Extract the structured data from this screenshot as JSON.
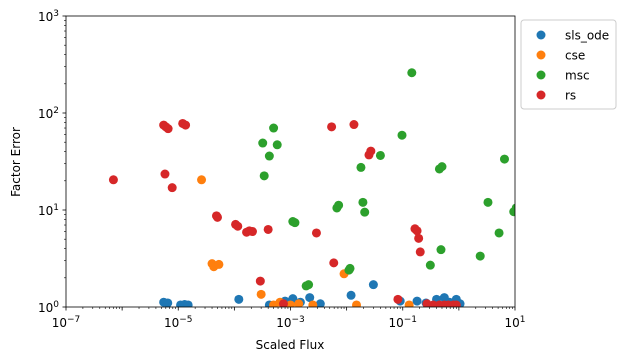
{
  "chart_data": {
    "type": "scatter",
    "xlabel": "Scaled Flux",
    "ylabel": "Factor Error",
    "xscale": "log",
    "yscale": "log",
    "xlim": [
      1e-07,
      10
    ],
    "ylim": [
      1,
      1000
    ],
    "x_ticks": [
      {
        "value": 1e-07,
        "base": "10",
        "exp": "−7"
      },
      {
        "value": 1e-05,
        "base": "10",
        "exp": "−5"
      },
      {
        "value": 0.001,
        "base": "10",
        "exp": "−3"
      },
      {
        "value": 0.1,
        "base": "10",
        "exp": "−1"
      },
      {
        "value": 10,
        "base": "10",
        "exp": "1"
      }
    ],
    "y_ticks": [
      {
        "value": 1,
        "base": "10",
        "exp": "0"
      },
      {
        "value": 10,
        "base": "10",
        "exp": "1"
      },
      {
        "value": 100,
        "base": "10",
        "exp": "2"
      },
      {
        "value": 1000,
        "base": "10",
        "exp": "3"
      }
    ],
    "grid": false,
    "legend_position": "outside-right-top",
    "series": [
      {
        "name": "sls_ode",
        "color": "#1f77b4",
        "points": [
          [
            5.5e-06,
            1.12
          ],
          [
            6.5e-06,
            1.1
          ],
          [
            1.1e-05,
            1.05
          ],
          [
            1.3e-05,
            1.06
          ],
          [
            1.5e-05,
            1.05
          ],
          [
            0.00012,
            1.2
          ],
          [
            0.00042,
            1.05
          ],
          [
            0.0008,
            1.15
          ],
          [
            0.0011,
            1.22
          ],
          [
            0.0015,
            1.12
          ],
          [
            0.0022,
            1.25
          ],
          [
            0.0034,
            1.08
          ],
          [
            0.012,
            1.32
          ],
          [
            0.03,
            1.7
          ],
          [
            0.09,
            1.15
          ],
          [
            0.18,
            1.15
          ],
          [
            0.26,
            1.1
          ],
          [
            0.4,
            1.2
          ],
          [
            0.55,
            1.25
          ],
          [
            0.68,
            1.12
          ],
          [
            0.9,
            1.2
          ],
          [
            1.05,
            1.08
          ]
        ]
      },
      {
        "name": "cse",
        "color": "#ff7f0e",
        "points": [
          [
            2.6e-05,
            20.5
          ],
          [
            4e-05,
            2.8
          ],
          [
            4.3e-05,
            2.6
          ],
          [
            5.3e-05,
            2.75
          ],
          [
            0.0003,
            1.35
          ],
          [
            0.0005,
            1.05
          ],
          [
            0.00065,
            1.12
          ],
          [
            0.001,
            1.05
          ],
          [
            0.0014,
            1.08
          ],
          [
            0.0025,
            1.05
          ],
          [
            0.009,
            2.2
          ],
          [
            0.015,
            1.05
          ],
          [
            0.13,
            1.05
          ]
        ]
      },
      {
        "name": "msc",
        "color": "#2ca02c",
        "points": [
          [
            0.00032,
            49
          ],
          [
            0.00034,
            22.5
          ],
          [
            0.00042,
            36
          ],
          [
            0.0005,
            70
          ],
          [
            0.00058,
            47
          ],
          [
            0.0011,
            7.6
          ],
          [
            0.0012,
            7.4
          ],
          [
            0.0019,
            1.65
          ],
          [
            0.0021,
            1.7
          ],
          [
            0.0067,
            10.5
          ],
          [
            0.0072,
            11.2
          ],
          [
            0.011,
            2.4
          ],
          [
            0.0115,
            2.5
          ],
          [
            0.018,
            27.5
          ],
          [
            0.0195,
            12
          ],
          [
            0.021,
            9.5
          ],
          [
            0.04,
            36.5
          ],
          [
            0.097,
            59
          ],
          [
            0.145,
            260
          ],
          [
            0.31,
            2.7
          ],
          [
            0.48,
            3.9
          ],
          [
            0.45,
            26.5
          ],
          [
            0.5,
            28
          ],
          [
            2.4,
            3.35
          ],
          [
            3.3,
            12
          ],
          [
            5.2,
            5.8
          ],
          [
            6.5,
            33.5
          ],
          [
            9.5,
            9.6
          ],
          [
            10.5,
            10.5
          ]
        ]
      },
      {
        "name": "rs",
        "color": "#d62728",
        "points": [
          [
            7e-07,
            20.5
          ],
          [
            5.5e-06,
            75
          ],
          [
            6e-06,
            72
          ],
          [
            6.6e-06,
            69
          ],
          [
            5.8e-06,
            23.5
          ],
          [
            7.8e-06,
            17
          ],
          [
            1.2e-05,
            78
          ],
          [
            1.35e-05,
            75
          ],
          [
            4.8e-05,
            8.7
          ],
          [
            5e-05,
            8.4
          ],
          [
            0.000105,
            7.1
          ],
          [
            0.000115,
            6.8
          ],
          [
            0.000165,
            5.9
          ],
          [
            0.000185,
            6.1
          ],
          [
            0.00021,
            6
          ],
          [
            0.00029,
            1.85
          ],
          [
            0.0004,
            6.3
          ],
          [
            0.00075,
            1.08
          ],
          [
            0.0029,
            5.8
          ],
          [
            0.0054,
            72
          ],
          [
            0.0059,
            2.85
          ],
          [
            0.0135,
            76
          ],
          [
            0.025,
            37
          ],
          [
            0.027,
            40.5
          ],
          [
            0.082,
            1.2
          ],
          [
            0.165,
            6.4
          ],
          [
            0.18,
            6.1
          ],
          [
            0.192,
            5.1
          ],
          [
            0.205,
            3.7
          ],
          [
            0.27,
            1.08
          ],
          [
            0.35,
            1.05
          ],
          [
            0.45,
            1.05
          ],
          [
            0.55,
            1.05
          ],
          [
            0.65,
            1.05
          ],
          [
            0.8,
            1.05
          ],
          [
            0.9,
            1.05
          ]
        ]
      }
    ]
  }
}
